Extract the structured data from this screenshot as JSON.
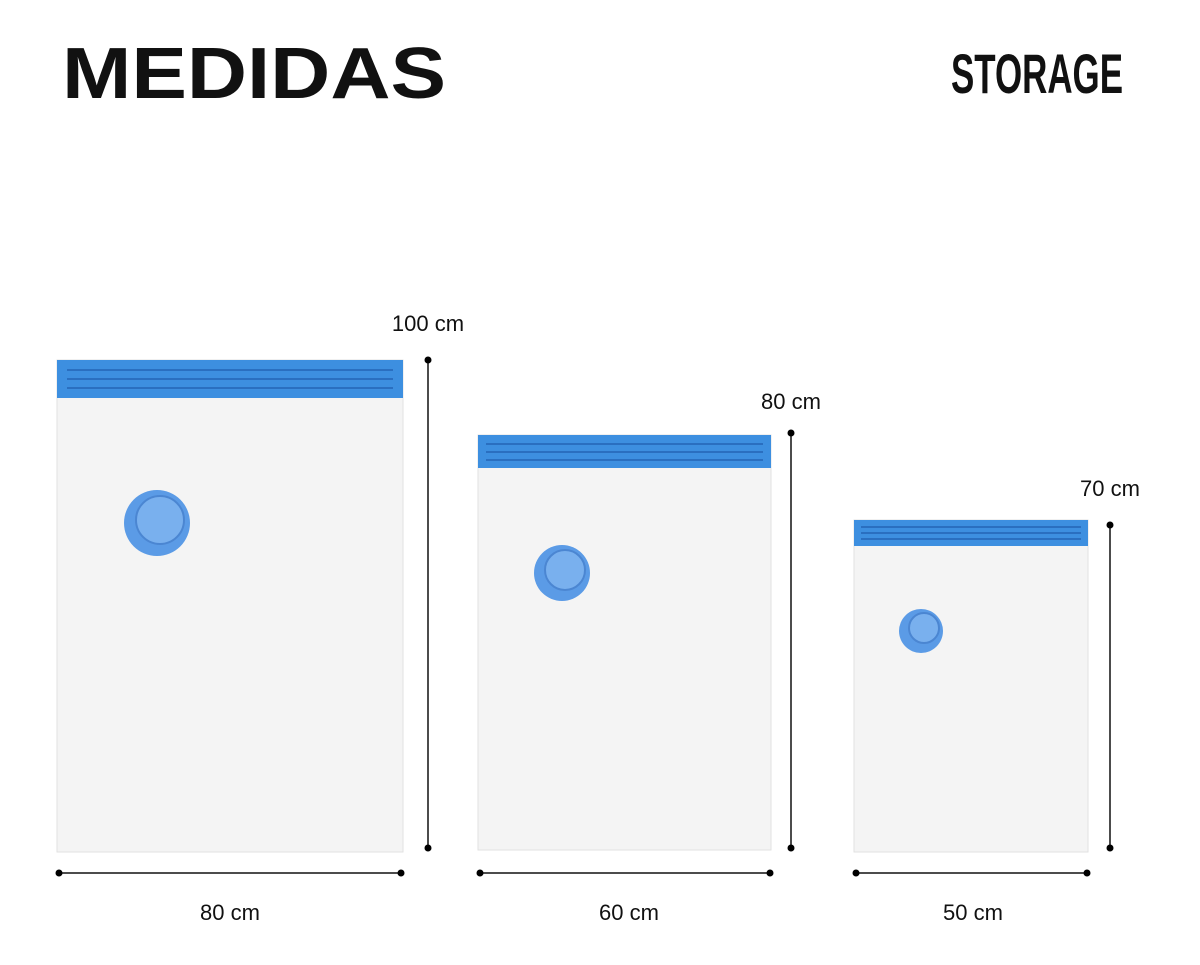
{
  "header": {
    "title": "MEDIDAS",
    "brand": "STORAGE"
  },
  "bags": [
    {
      "width": "80 cm",
      "height": "100 cm"
    },
    {
      "width": "60 cm",
      "height": "80 cm"
    },
    {
      "width": "50 cm",
      "height": "70 cm"
    }
  ]
}
